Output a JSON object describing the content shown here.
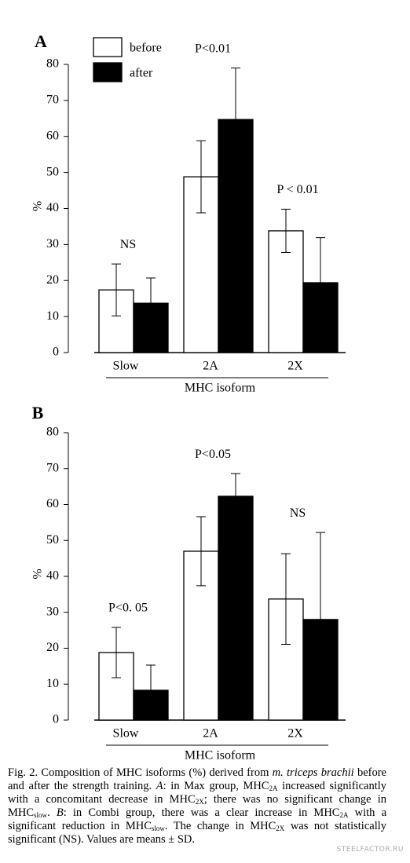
{
  "chart_data": [
    {
      "type": "bar",
      "panel_label": "A",
      "ylabel": "%",
      "xlabel": "MHC isoform",
      "categories": [
        "Slow",
        "2A",
        "2X"
      ],
      "series": [
        {
          "name": "before",
          "color": "#ffffff",
          "values": [
            17.4,
            48.8,
            33.8
          ],
          "errors": [
            7.2,
            10,
            6
          ]
        },
        {
          "name": "after",
          "color": "#000000",
          "values": [
            13.7,
            64.7,
            19.4
          ],
          "errors": [
            7,
            14.3,
            12.5
          ]
        }
      ],
      "annotations": [
        "NS",
        "P<0.01",
        "P < 0.01"
      ],
      "legend": true,
      "ylim": [
        0,
        80
      ],
      "yticks": [
        0,
        10,
        20,
        30,
        40,
        50,
        60,
        70,
        80
      ]
    },
    {
      "type": "bar",
      "panel_label": "B",
      "ylabel": "%",
      "xlabel": "MHC isoform",
      "categories": [
        "Slow",
        "2A",
        "2X"
      ],
      "series": [
        {
          "color": "#ffffff",
          "values": [
            18.8,
            47,
            33.7
          ],
          "errors": [
            7,
            9.6,
            12.6
          ]
        },
        {
          "color": "#000000",
          "values": [
            8.3,
            62.3,
            28
          ],
          "errors": [
            7,
            6.3,
            24.2
          ]
        }
      ],
      "annotations": [
        "P<0. 05",
        "P<0.05",
        "NS"
      ],
      "legend": false,
      "ylim": [
        0,
        80
      ],
      "yticks": [
        0,
        10,
        20,
        30,
        40,
        50,
        60,
        70,
        80
      ]
    }
  ],
  "caption": [
    "Fig. 2. Composition of MHC isoforms (%) derived from ",
    "m. triceps brachii",
    " before and after the strength training. ",
    "A",
    ": in Max group, MHC",
    "2A",
    " increased significantly with a concomitant decrease in MHC",
    "2X",
    "; there was no significant change in MHC",
    "slow",
    ". ",
    "B",
    ": in Combi group, there was a clear increase in MHC",
    "2A",
    " with a significant reduction in MHC",
    "slow",
    ". The change in MHC",
    "2X",
    " was not statistically significant (NS). Values are means ± SD."
  ],
  "watermark": "STEELFACTOR.RU"
}
